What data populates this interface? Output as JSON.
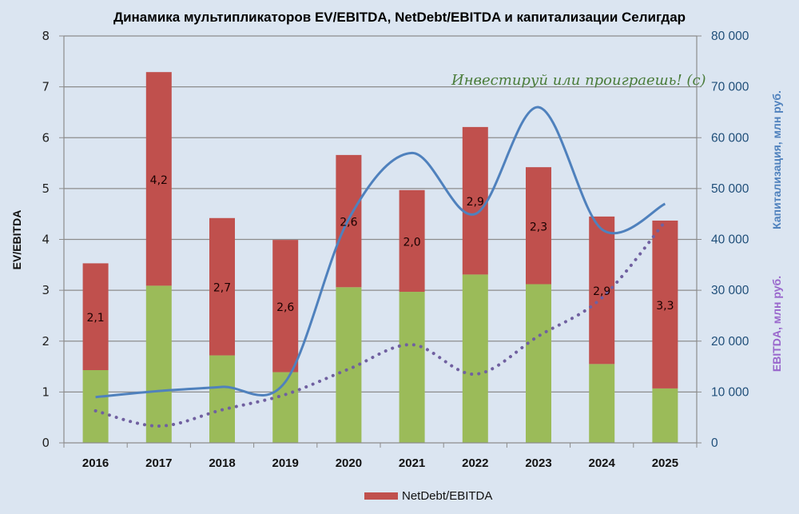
{
  "chart_data": {
    "type": "bar",
    "title": "Динамика мультипликаторов EV/EBITDA, NetDebt/EBITDA и капитализации Селигдар",
    "categories": [
      "2016",
      "2017",
      "2018",
      "2019",
      "2020",
      "2021",
      "2022",
      "2023",
      "2024",
      "2025"
    ],
    "ylabel": "EV/EBITDA",
    "ylim": [
      0,
      8
    ],
    "yticks": [
      "0",
      "1",
      "2",
      "3",
      "4",
      "5",
      "6",
      "7",
      "8"
    ],
    "y2label_cap": "Капитализация,  млн руб.",
    "y2label_ebitda": "EBITDA, млн руб.",
    "y2lim": [
      0,
      80000
    ],
    "y2ticks": [
      "0",
      "10 000",
      "20 000",
      "30 000",
      "40 000",
      "50 000",
      "60 000",
      "70 000",
      "80 000"
    ],
    "grid": true,
    "legend_position": "bottom",
    "legend": [
      "NetDebt/EBITDA"
    ],
    "watermark": "Инвестируй или проиграешь! (с)",
    "series": [
      {
        "name": "EV/EBITDA (green segment)",
        "type": "stacked-bar",
        "color": "#9bbb59",
        "values": [
          1.43,
          3.09,
          1.72,
          1.39,
          3.06,
          2.97,
          3.31,
          3.12,
          1.55,
          1.07
        ]
      },
      {
        "name": "NetDebt/EBITDA",
        "type": "stacked-bar",
        "color": "#c0504d",
        "values": [
          2.1,
          4.2,
          2.7,
          2.6,
          2.6,
          2.0,
          2.9,
          2.3,
          2.9,
          3.3
        ],
        "labels": [
          "2,1",
          "4,2",
          "2,7",
          "2,6",
          "2,6",
          "2,0",
          "2,9",
          "2,3",
          "2,9",
          "3,3"
        ]
      },
      {
        "name": "Капитализация",
        "type": "line",
        "axis": "right",
        "color": "#4f81bd",
        "values": [
          9000,
          10200,
          11000,
          12000,
          44000,
          57000,
          45000,
          66000,
          42000,
          47000
        ]
      },
      {
        "name": "EBITDA",
        "type": "dotted-line",
        "axis": "right",
        "color": "#7060a0",
        "values": [
          6300,
          3300,
          6500,
          9500,
          14500,
          19300,
          13500,
          21000,
          28500,
          43500
        ]
      }
    ]
  }
}
